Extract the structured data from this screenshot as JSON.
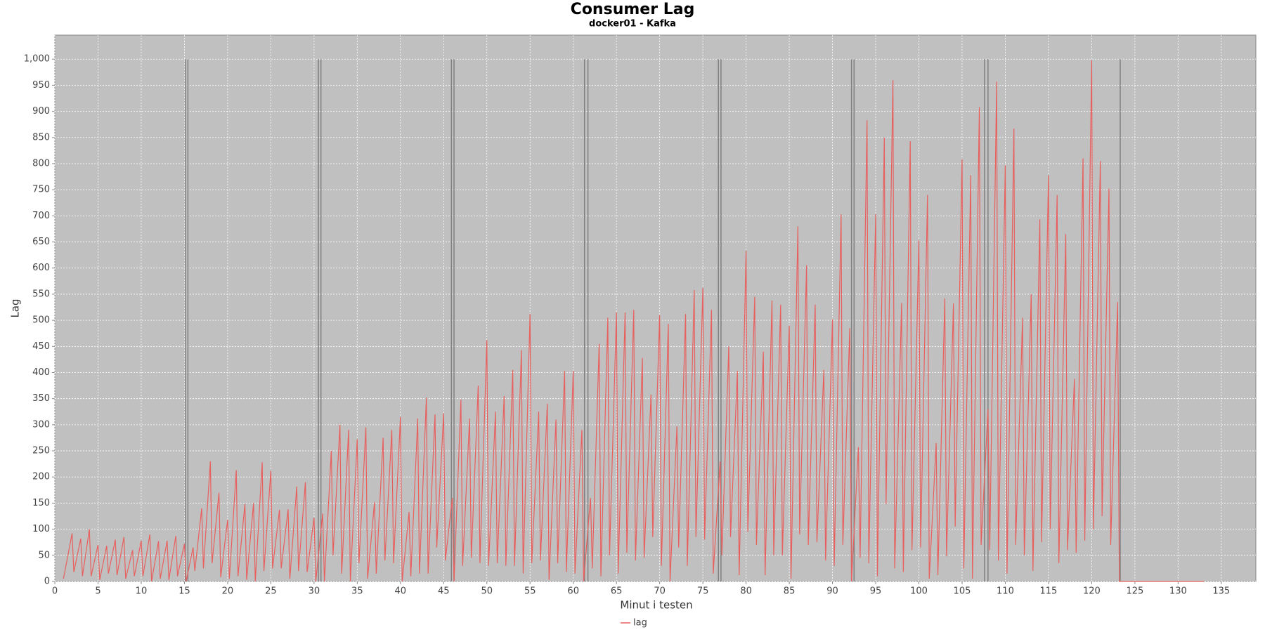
{
  "chart_data": {
    "type": "line",
    "title": "Consumer Lag",
    "subtitle": "docker01 - Kafka",
    "x_label": "Minut i testen",
    "y_label": "Lag",
    "xlim": [
      0,
      139
    ],
    "ylim": [
      0,
      1046
    ],
    "xticks": [
      0,
      5,
      10,
      15,
      20,
      25,
      30,
      35,
      40,
      45,
      50,
      55,
      60,
      65,
      70,
      75,
      80,
      85,
      90,
      95,
      100,
      105,
      110,
      115,
      120,
      125,
      130,
      135
    ],
    "yticks": [
      0,
      50,
      100,
      150,
      200,
      250,
      300,
      350,
      400,
      450,
      500,
      550,
      600,
      650,
      700,
      750,
      800,
      850,
      900,
      950,
      {
        "value": 1000,
        "label": "1,000"
      }
    ],
    "grid": true,
    "legend": "bottom",
    "vertical_lines": {
      "color": "#808080",
      "height": 1000,
      "x": [
        15.1,
        15.4,
        30.5,
        30.8,
        45.9,
        46.2,
        61.3,
        61.7,
        76.8,
        77.1,
        92.2,
        92.5,
        107.6,
        108.0,
        123.3
      ]
    },
    "series": [
      {
        "name": "lag",
        "color": "#e8605e",
        "x": [
          1,
          2,
          2.2,
          3,
          3.2,
          4,
          4.2,
          5,
          5.2,
          6,
          6.2,
          7,
          7.2,
          8,
          8.2,
          9,
          9.2,
          10,
          10.2,
          11,
          11.2,
          12,
          12.2,
          13,
          13.2,
          14,
          14.2,
          15,
          15.2,
          16,
          16.2,
          17,
          17.2,
          18,
          18.2,
          19,
          19.2,
          20,
          20.2,
          21,
          21.2,
          22,
          22.2,
          23,
          23.2,
          24,
          24.2,
          25,
          25.2,
          26,
          26.2,
          27,
          27.2,
          28,
          28.2,
          29,
          29.2,
          30,
          30.2,
          31,
          31.2,
          32,
          32.2,
          33,
          33.2,
          34,
          34.2,
          35,
          35.2,
          36,
          36.2,
          37,
          37.2,
          38,
          38.2,
          39,
          39.2,
          40,
          40.2,
          41,
          41.2,
          42,
          42.2,
          43,
          43.2,
          44,
          44.2,
          45,
          45.2,
          46,
          46.2,
          47,
          47.2,
          48,
          48.2,
          49,
          49.2,
          50,
          50.2,
          51,
          51.2,
          52,
          52.2,
          53,
          53.2,
          54,
          54.2,
          55,
          55.2,
          56,
          56.2,
          57,
          57.2,
          58,
          58.2,
          59,
          59.2,
          60,
          60.2,
          61,
          61.2,
          62,
          62.2,
          63,
          63.2,
          64,
          64.2,
          65,
          65.2,
          66,
          66.2,
          67,
          67.2,
          68,
          68.2,
          69,
          69.2,
          70,
          70.2,
          71,
          71.2,
          72,
          72.2,
          73,
          73.2,
          74,
          74.2,
          75,
          75.2,
          76,
          76.2,
          77,
          77.2,
          78,
          78.2,
          79,
          79.2,
          80,
          80.2,
          81,
          81.2,
          82,
          82.2,
          83,
          83.2,
          84,
          84.2,
          85,
          85.2,
          86,
          86.2,
          87,
          87.2,
          88,
          88.2,
          89,
          89.2,
          90,
          90.2,
          91,
          91.2,
          92,
          92.2,
          93,
          93.2,
          94,
          94.2,
          95,
          95.2,
          96,
          96.2,
          97,
          97.2,
          98,
          98.2,
          99,
          99.2,
          100,
          100.2,
          101,
          101.2,
          102,
          102.2,
          103,
          103.2,
          104,
          104.2,
          105,
          105.2,
          106,
          106.2,
          107,
          107.2,
          108,
          108.2,
          109,
          109.2,
          110,
          110.2,
          111,
          111.2,
          112,
          112.2,
          113,
          113.2,
          114,
          114.2,
          115,
          115.2,
          116,
          116.2,
          117,
          117.2,
          118,
          118.2,
          119,
          119.2,
          120,
          120.2,
          121,
          121.2,
          122,
          122.2,
          123,
          123.2,
          133
        ],
        "values": [
          5,
          92,
          18,
          82,
          10,
          100,
          10,
          70,
          3,
          68,
          15,
          80,
          12,
          85,
          5,
          60,
          10,
          78,
          10,
          90,
          0,
          77,
          5,
          78,
          3,
          87,
          10,
          72,
          0,
          65,
          20,
          140,
          25,
          230,
          35,
          170,
          8,
          118,
          5,
          213,
          10,
          148,
          3,
          150,
          0,
          228,
          20,
          212,
          25,
          137,
          25,
          138,
          5,
          182,
          20,
          190,
          18,
          122,
          0,
          130,
          0,
          250,
          50,
          300,
          15,
          290,
          0,
          272,
          35,
          295,
          5,
          152,
          15,
          275,
          40,
          290,
          35,
          315,
          0,
          133,
          10,
          312,
          15,
          352,
          15,
          320,
          65,
          322,
          40,
          160,
          0,
          348,
          30,
          312,
          45,
          375,
          35,
          462,
          30,
          325,
          35,
          355,
          30,
          405,
          30,
          443,
          15,
          512,
          35,
          325,
          40,
          340,
          3,
          310,
          35,
          403,
          18,
          403,
          15,
          290,
          0,
          160,
          25,
          455,
          10,
          505,
          50,
          515,
          15,
          515,
          55,
          520,
          40,
          428,
          45,
          358,
          85,
          510,
          30,
          493,
          0,
          297,
          65,
          512,
          30,
          558,
          85,
          562,
          80,
          520,
          15,
          230,
          50,
          450,
          85,
          403,
          12,
          633,
          95,
          545,
          70,
          440,
          12,
          538,
          50,
          530,
          50,
          490,
          5,
          680,
          90,
          605,
          70,
          530,
          75,
          405,
          40,
          502,
          30,
          703,
          70,
          485,
          0,
          257,
          45,
          883,
          35,
          703,
          10,
          850,
          148,
          960,
          25,
          533,
          18,
          843,
          60,
          653,
          65,
          740,
          5,
          265,
          12,
          542,
          48,
          532,
          105,
          808,
          25,
          778,
          5,
          908,
          70,
          330,
          60,
          957,
          40,
          797,
          15,
          867,
          70,
          505,
          50,
          550,
          20,
          693,
          75,
          778,
          100,
          740,
          35,
          665,
          60,
          388,
          55,
          810,
          78,
          998,
          100,
          805,
          125,
          752,
          70,
          535,
          0,
          0
        ]
      }
    ]
  }
}
